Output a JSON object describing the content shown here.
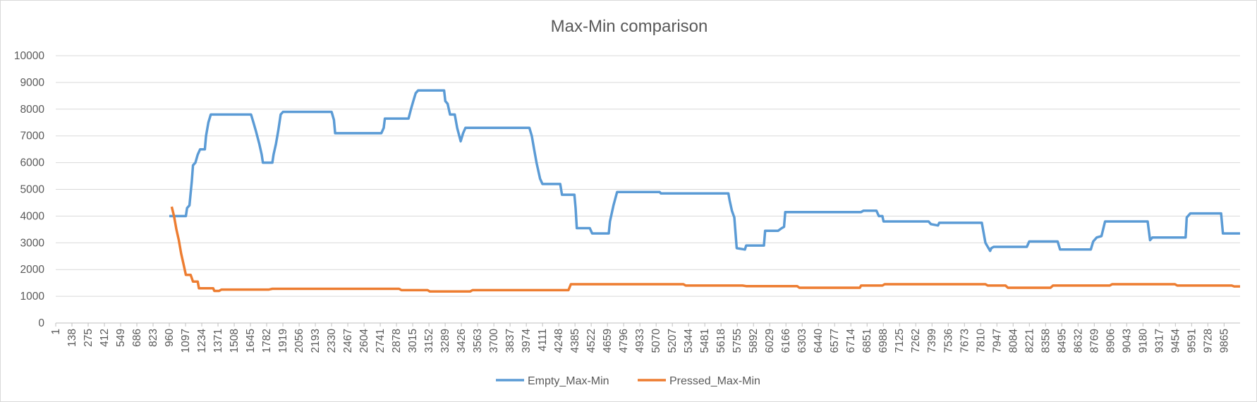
{
  "chart_data": {
    "type": "line",
    "title": "Max-Min comparison",
    "xlabel": "",
    "ylabel": "",
    "ylim": [
      0,
      10000
    ],
    "y_ticks": [
      0,
      1000,
      2000,
      3000,
      4000,
      5000,
      6000,
      7000,
      8000,
      9000,
      10000
    ],
    "x_range": [
      1,
      10000
    ],
    "x_tick_labels": [
      "1",
      "138",
      "275",
      "412",
      "549",
      "686",
      "823",
      "960",
      "1097",
      "1234",
      "1371",
      "1508",
      "1645",
      "1782",
      "1919",
      "2056",
      "2193",
      "2330",
      "2467",
      "2604",
      "2741",
      "2878",
      "3015",
      "3152",
      "3289",
      "3426",
      "3563",
      "3700",
      "3837",
      "3974",
      "4111",
      "4248",
      "4385",
      "4522",
      "4659",
      "4796",
      "4933",
      "5070",
      "5207",
      "5344",
      "5481",
      "5618",
      "5755",
      "5892",
      "6029",
      "6166",
      "6303",
      "6440",
      "6577",
      "6714",
      "6851",
      "6988",
      "7125",
      "7262",
      "7399",
      "7536",
      "7673",
      "7810",
      "7947",
      "8084",
      "8221",
      "8358",
      "8495",
      "8632",
      "8769",
      "8906",
      "9043",
      "9180",
      "9317",
      "9454",
      "9591",
      "9728",
      "9865"
    ],
    "grid": true,
    "legend_position": "bottom",
    "series": [
      {
        "name": "Empty_Max-Min",
        "color": "#5b9bd5",
        "points": [
          [
            960,
            4000
          ],
          [
            1050,
            4000
          ],
          [
            1100,
            4000
          ],
          [
            1110,
            4300
          ],
          [
            1130,
            4400
          ],
          [
            1150,
            5300
          ],
          [
            1160,
            5900
          ],
          [
            1180,
            6000
          ],
          [
            1200,
            6300
          ],
          [
            1220,
            6500
          ],
          [
            1260,
            6500
          ],
          [
            1270,
            7000
          ],
          [
            1290,
            7500
          ],
          [
            1310,
            7800
          ],
          [
            1350,
            7800
          ],
          [
            1650,
            7800
          ],
          [
            1670,
            7500
          ],
          [
            1690,
            7200
          ],
          [
            1720,
            6700
          ],
          [
            1740,
            6300
          ],
          [
            1750,
            6000
          ],
          [
            1830,
            6000
          ],
          [
            1840,
            6300
          ],
          [
            1860,
            6700
          ],
          [
            1880,
            7200
          ],
          [
            1900,
            7800
          ],
          [
            1920,
            7900
          ],
          [
            2330,
            7900
          ],
          [
            2350,
            7600
          ],
          [
            2360,
            7100
          ],
          [
            2750,
            7100
          ],
          [
            2770,
            7300
          ],
          [
            2780,
            7650
          ],
          [
            2980,
            7650
          ],
          [
            3000,
            8000
          ],
          [
            3020,
            8300
          ],
          [
            3040,
            8600
          ],
          [
            3060,
            8700
          ],
          [
            3280,
            8700
          ],
          [
            3290,
            8300
          ],
          [
            3310,
            8200
          ],
          [
            3330,
            7800
          ],
          [
            3370,
            7800
          ],
          [
            3390,
            7300
          ],
          [
            3420,
            6800
          ],
          [
            3440,
            7100
          ],
          [
            3460,
            7300
          ],
          [
            4000,
            7300
          ],
          [
            4020,
            7000
          ],
          [
            4040,
            6500
          ],
          [
            4060,
            6000
          ],
          [
            4090,
            5400
          ],
          [
            4110,
            5200
          ],
          [
            4260,
            5200
          ],
          [
            4275,
            4800
          ],
          [
            4380,
            4800
          ],
          [
            4390,
            4300
          ],
          [
            4400,
            3550
          ],
          [
            4510,
            3550
          ],
          [
            4530,
            3350
          ],
          [
            4670,
            3350
          ],
          [
            4680,
            3800
          ],
          [
            4710,
            4400
          ],
          [
            4740,
            4900
          ],
          [
            5100,
            4900
          ],
          [
            5110,
            4850
          ],
          [
            5680,
            4850
          ],
          [
            5690,
            4600
          ],
          [
            5710,
            4200
          ],
          [
            5730,
            3950
          ],
          [
            5750,
            2800
          ],
          [
            5820,
            2750
          ],
          [
            5830,
            2900
          ],
          [
            5980,
            2900
          ],
          [
            5990,
            3450
          ],
          [
            6100,
            3450
          ],
          [
            6130,
            3550
          ],
          [
            6150,
            3600
          ],
          [
            6160,
            4150
          ],
          [
            6800,
            4150
          ],
          [
            6820,
            4200
          ],
          [
            6930,
            4200
          ],
          [
            6950,
            4000
          ],
          [
            6980,
            4000
          ],
          [
            6990,
            3800
          ],
          [
            7370,
            3800
          ],
          [
            7390,
            3700
          ],
          [
            7450,
            3650
          ],
          [
            7460,
            3750
          ],
          [
            7820,
            3750
          ],
          [
            7830,
            3500
          ],
          [
            7850,
            3000
          ],
          [
            7870,
            2850
          ],
          [
            7890,
            2700
          ],
          [
            7900,
            2800
          ],
          [
            7920,
            2850
          ],
          [
            8200,
            2850
          ],
          [
            8220,
            3050
          ],
          [
            8460,
            3050
          ],
          [
            8480,
            2750
          ],
          [
            8740,
            2750
          ],
          [
            8760,
            3050
          ],
          [
            8790,
            3200
          ],
          [
            8830,
            3250
          ],
          [
            8860,
            3800
          ],
          [
            9220,
            3800
          ],
          [
            9240,
            3100
          ],
          [
            9260,
            3200
          ],
          [
            9540,
            3200
          ],
          [
            9550,
            3950
          ],
          [
            9580,
            4100
          ],
          [
            9840,
            4100
          ],
          [
            9855,
            3350
          ],
          [
            10000,
            3350
          ]
        ]
      },
      {
        "name": "Pressed_Max-Min",
        "color": "#ed7d31",
        "points": [
          [
            980,
            4350
          ],
          [
            1000,
            4000
          ],
          [
            1020,
            3500
          ],
          [
            1040,
            3100
          ],
          [
            1060,
            2600
          ],
          [
            1080,
            2200
          ],
          [
            1100,
            1800
          ],
          [
            1140,
            1800
          ],
          [
            1160,
            1550
          ],
          [
            1200,
            1550
          ],
          [
            1210,
            1300
          ],
          [
            1330,
            1300
          ],
          [
            1340,
            1200
          ],
          [
            1380,
            1200
          ],
          [
            1400,
            1250
          ],
          [
            1800,
            1250
          ],
          [
            1830,
            1280
          ],
          [
            2900,
            1280
          ],
          [
            2920,
            1230
          ],
          [
            3140,
            1230
          ],
          [
            3160,
            1180
          ],
          [
            3500,
            1180
          ],
          [
            3520,
            1230
          ],
          [
            4330,
            1230
          ],
          [
            4350,
            1450
          ],
          [
            5300,
            1450
          ],
          [
            5320,
            1400
          ],
          [
            5800,
            1400
          ],
          [
            5830,
            1380
          ],
          [
            6260,
            1380
          ],
          [
            6280,
            1320
          ],
          [
            6790,
            1320
          ],
          [
            6800,
            1400
          ],
          [
            6980,
            1400
          ],
          [
            7000,
            1450
          ],
          [
            7850,
            1450
          ],
          [
            7870,
            1400
          ],
          [
            8020,
            1400
          ],
          [
            8040,
            1320
          ],
          [
            8400,
            1320
          ],
          [
            8420,
            1400
          ],
          [
            8900,
            1400
          ],
          [
            8920,
            1450
          ],
          [
            9450,
            1450
          ],
          [
            9470,
            1400
          ],
          [
            9930,
            1400
          ],
          [
            9950,
            1370
          ],
          [
            10000,
            1370
          ]
        ]
      }
    ]
  }
}
